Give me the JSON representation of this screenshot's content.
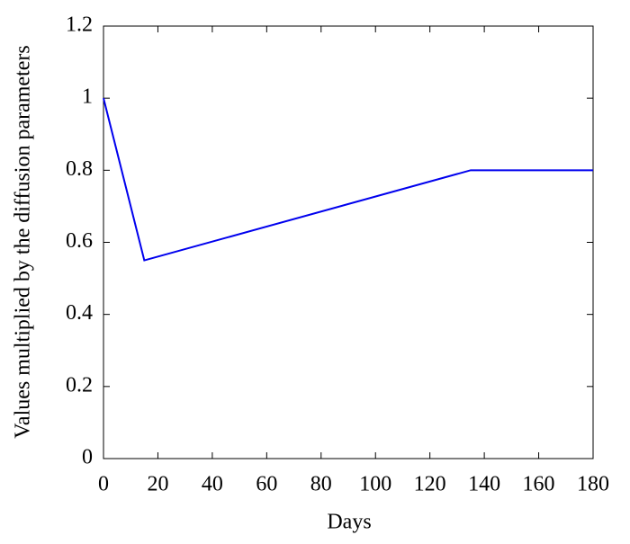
{
  "chart_data": {
    "type": "line",
    "x_label": "Days",
    "y_label": "Values multiplied by the diffusion parameters",
    "x": [
      0,
      15,
      135,
      180
    ],
    "series": [
      {
        "color": "#0000ee",
        "values": [
          1,
          0.55,
          0.8,
          0.8
        ]
      }
    ],
    "xlim": [
      0,
      180
    ],
    "xticks": [
      0,
      20,
      40,
      60,
      80,
      100,
      120,
      140,
      160,
      180
    ],
    "ylim": [
      0,
      1.2
    ],
    "yticks": [
      0,
      0.2,
      0.4,
      0.6,
      0.8,
      1,
      1.2
    ],
    "grid": false
  }
}
